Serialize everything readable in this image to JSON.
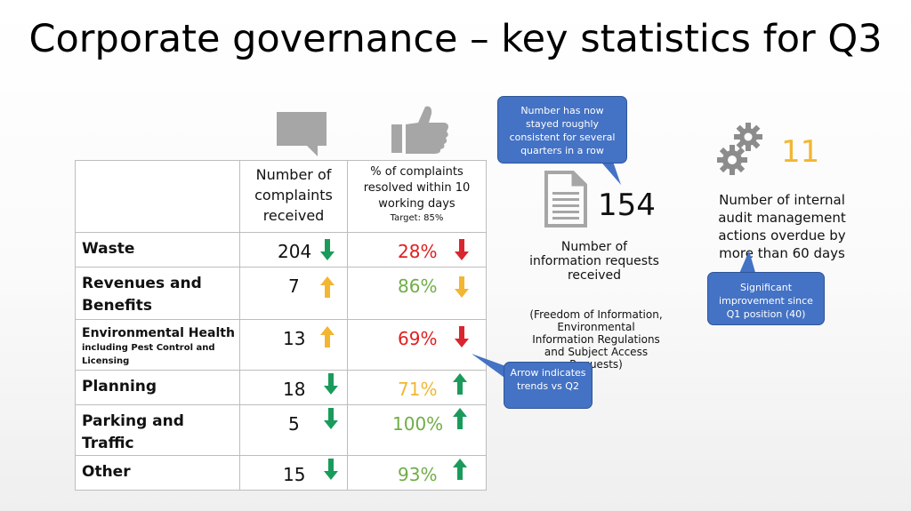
{
  "slide": {
    "title": "Corporate governance – key statistics for Q3"
  },
  "table": {
    "header": {
      "complaints_received": "Number of complaints received",
      "resolved_pct": "% of complaints resolved within 10 working days",
      "resolved_target": "Target: 85%"
    },
    "rows": [
      {
        "label": "Waste",
        "sublabel": "",
        "count": "204",
        "count_trend": "down",
        "count_color": "#1a9b5b",
        "pct": "28%",
        "pct_color": "#e02020",
        "pct_trend": "down",
        "pct_arrow_color": "#d9262e"
      },
      {
        "label": "Revenues and Benefits",
        "sublabel": "",
        "count": "7",
        "count_trend": "up",
        "count_color": "#f2b632",
        "pct": "86%",
        "pct_color": "#70ad47",
        "pct_trend": "down",
        "pct_arrow_color": "#f2b632"
      },
      {
        "label": "Environmental Health",
        "sublabel": "including Pest Control and Licensing",
        "count": "13",
        "count_trend": "up",
        "count_color": "#f2b632",
        "pct": "69%",
        "pct_color": "#e02020",
        "pct_trend": "down",
        "pct_arrow_color": "#d9262e"
      },
      {
        "label": "Planning",
        "sublabel": "",
        "count": "18",
        "count_trend": "down",
        "count_color": "#1a9b5b",
        "pct": "71%",
        "pct_color": "#f2b632",
        "pct_trend": "up",
        "pct_arrow_color": "#1a9b5b"
      },
      {
        "label": "Parking and Traffic",
        "sublabel": "",
        "count": "5",
        "count_trend": "down",
        "count_color": "#1a9b5b",
        "pct": "100%",
        "pct_color": "#70ad47",
        "pct_trend": "up",
        "pct_arrow_color": "#1a9b5b"
      },
      {
        "label": "Other",
        "sublabel": "",
        "count": "15",
        "count_trend": "down",
        "count_color": "#1a9b5b",
        "pct": "93%",
        "pct_color": "#70ad47",
        "pct_trend": "up",
        "pct_arrow_color": "#1a9b5b"
      }
    ]
  },
  "info_requests": {
    "value": "154",
    "label": "Number of information requests received",
    "note": "(Freedom of Information, Environmental Information Regulations and Subject Access Requests)"
  },
  "audit": {
    "value": "11",
    "label": "Number of internal audit management actions overdue by more than 60 days",
    "value_color": "#f2b632"
  },
  "callouts": {
    "info_requests": "Number has now stayed roughly consistent for several quarters in a row",
    "audit": "Significant improvement since Q1 position (40)",
    "arrows": "Arrow indicates trends vs Q2"
  },
  "icons": {
    "complaints": "speech-bubble-icon",
    "resolved": "thumbs-up-icon",
    "document": "document-icon",
    "gears": "gears-icon"
  }
}
